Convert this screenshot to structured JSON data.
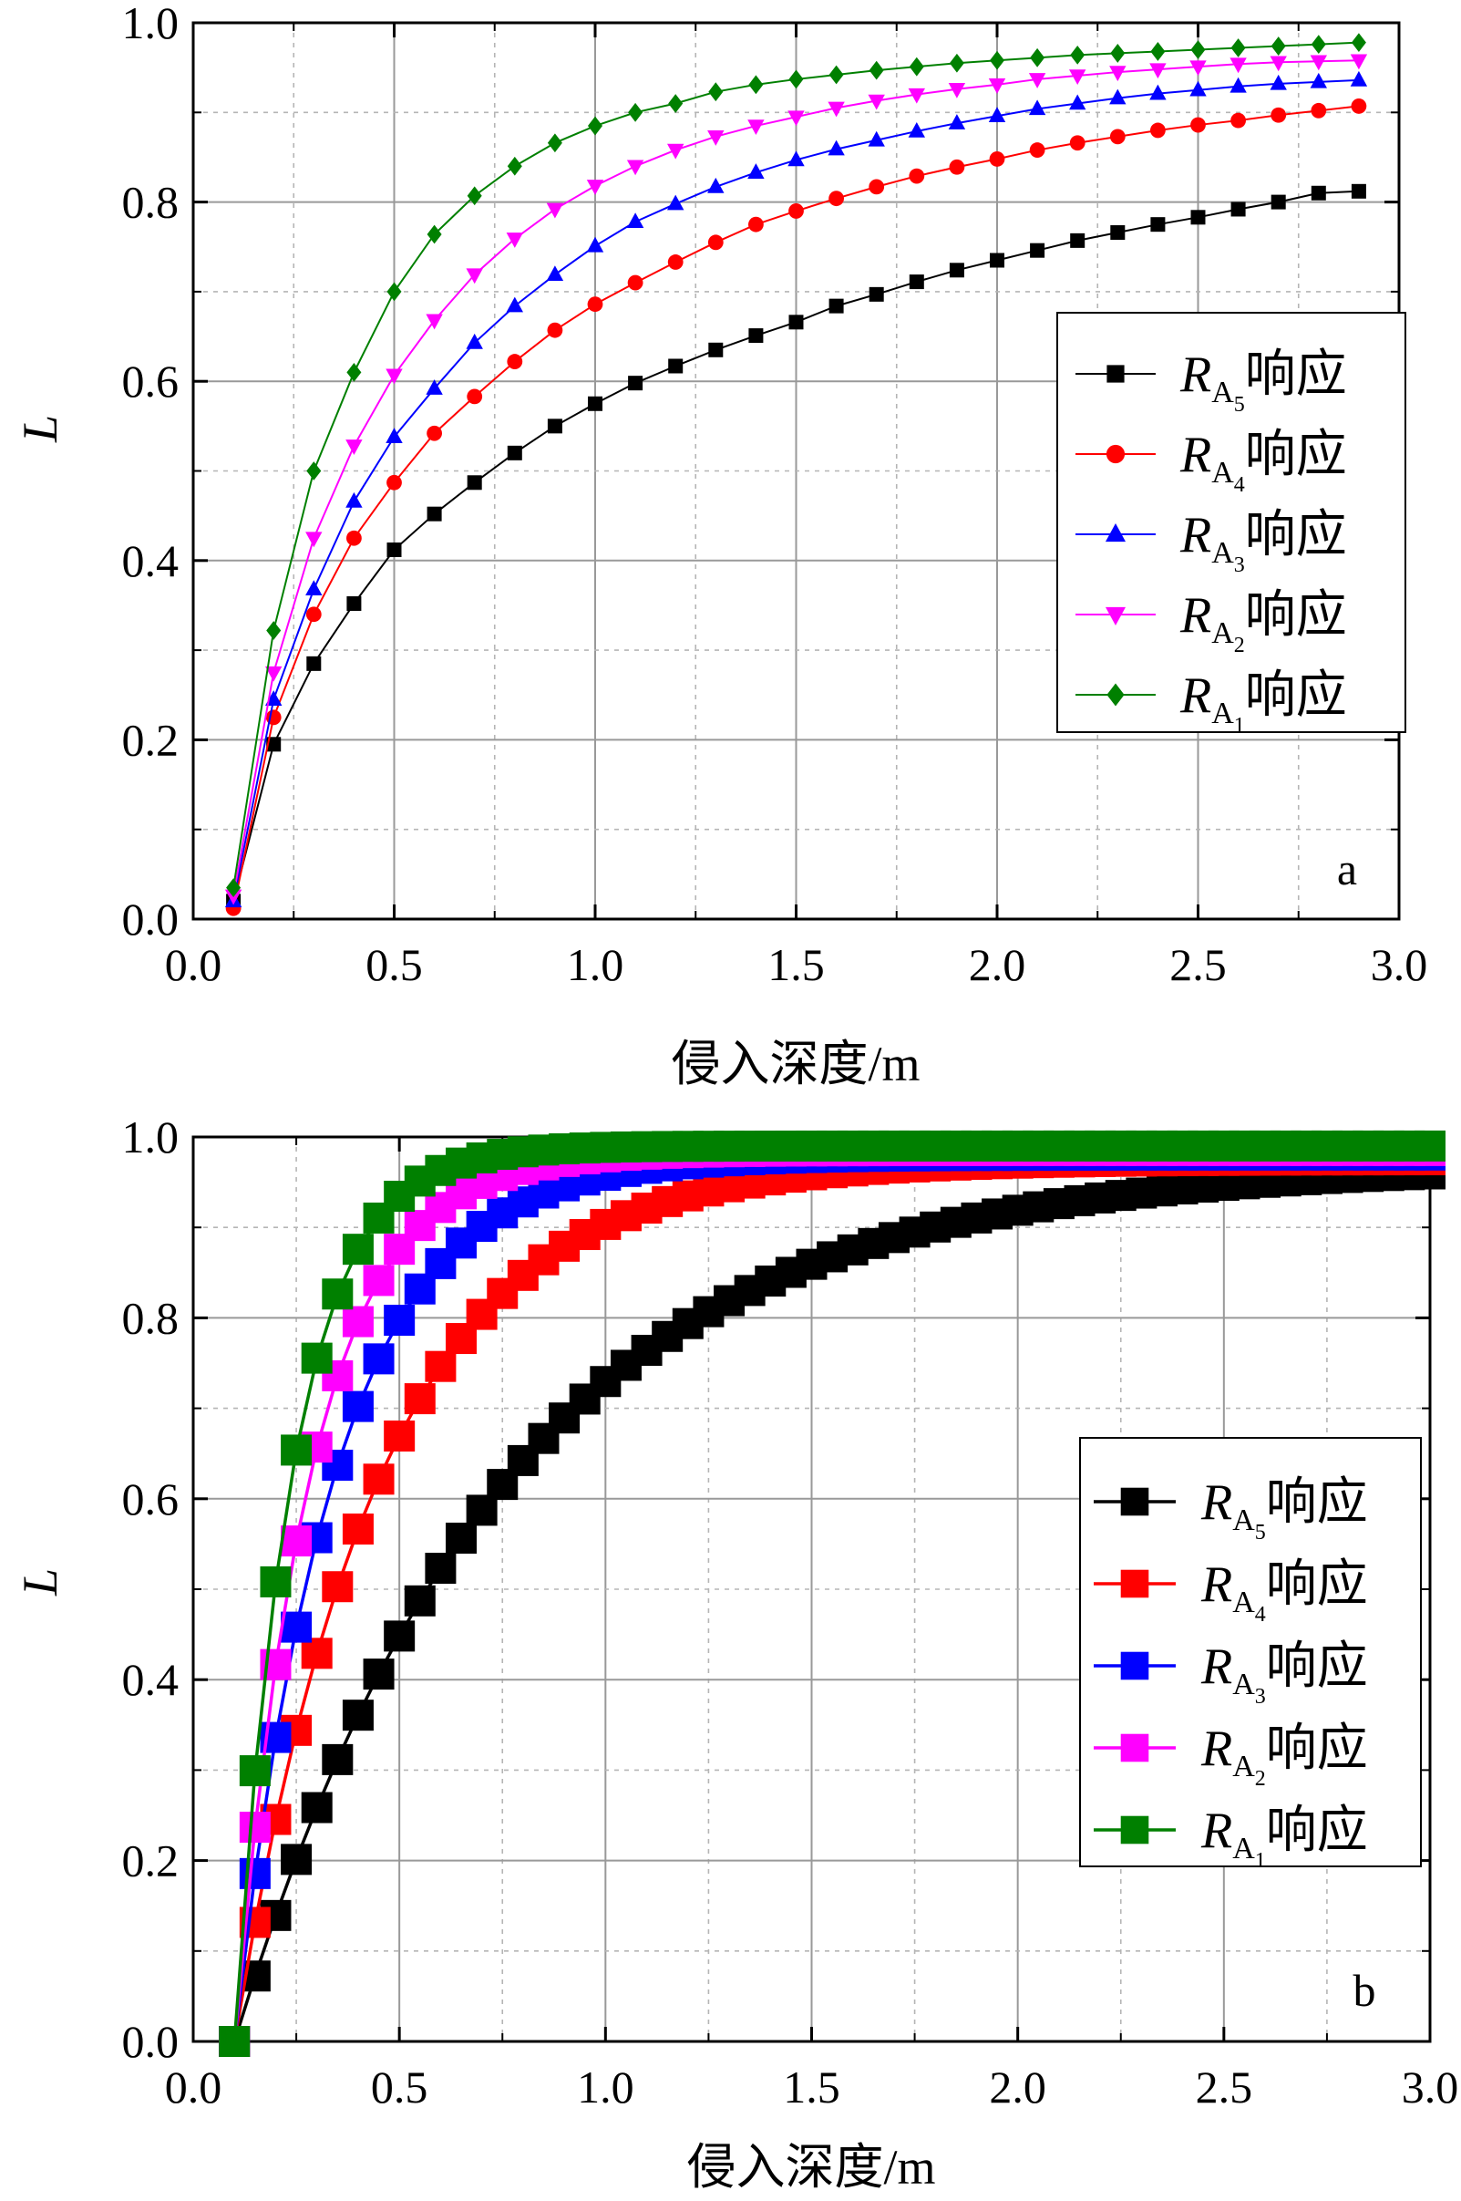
{
  "figure_title": "",
  "chart_data": [
    {
      "type": "line",
      "panel": "a",
      "title": "",
      "xlabel": "侵入深度/m",
      "ylabel": "L",
      "xlim": [
        0.0,
        3.0
      ],
      "ylim": [
        0.0,
        1.0
      ],
      "xticks": [
        0.0,
        0.5,
        1.0,
        1.5,
        2.0,
        2.5,
        3.0
      ],
      "xtick_labels": [
        "0.0",
        "0.5",
        "1.0",
        "1.5",
        "2.0",
        "2.5",
        "3.0"
      ],
      "yticks": [
        0.0,
        0.2,
        0.4,
        0.6,
        0.8,
        1.0
      ],
      "ytick_labels": [
        "0.0",
        "0.2",
        "0.4",
        "0.6",
        "0.8",
        "1.0"
      ],
      "grid": true,
      "legend_position": "center-right",
      "x": [
        0.1,
        0.2,
        0.3,
        0.4,
        0.5,
        0.6,
        0.7,
        0.8,
        0.9,
        1.0,
        1.1,
        1.2,
        1.3,
        1.4,
        1.5,
        1.6,
        1.7,
        1.8,
        1.9,
        2.0,
        2.1,
        2.2,
        2.3,
        2.4,
        2.5,
        2.6,
        2.7,
        2.8,
        2.9
      ],
      "series": [
        {
          "name": "R",
          "sub": "A",
          "subsub": "5",
          "suffix": "响应",
          "color": "#000000",
          "marker": "square",
          "values": [
            0.02,
            0.195,
            0.285,
            0.352,
            0.412,
            0.452,
            0.487,
            0.52,
            0.55,
            0.575,
            0.598,
            0.617,
            0.635,
            0.651,
            0.666,
            0.684,
            0.697,
            0.711,
            0.724,
            0.735,
            0.746,
            0.757,
            0.766,
            0.775,
            0.783,
            0.792,
            0.8,
            0.81,
            0.812
          ]
        },
        {
          "name": "R",
          "sub": "A",
          "subsub": "4",
          "suffix": "响应",
          "color": "#ff0000",
          "marker": "circle",
          "values": [
            0.012,
            0.225,
            0.34,
            0.425,
            0.487,
            0.542,
            0.583,
            0.622,
            0.657,
            0.686,
            0.71,
            0.733,
            0.755,
            0.775,
            0.79,
            0.804,
            0.817,
            0.829,
            0.839,
            0.848,
            0.858,
            0.866,
            0.873,
            0.88,
            0.886,
            0.891,
            0.897,
            0.902,
            0.907
          ]
        },
        {
          "name": "R",
          "sub": "A",
          "subsub": "3",
          "suffix": "响应",
          "color": "#0000ff",
          "marker": "triangle-up",
          "values": [
            0.02,
            0.245,
            0.368,
            0.466,
            0.538,
            0.592,
            0.643,
            0.684,
            0.719,
            0.751,
            0.778,
            0.798,
            0.817,
            0.833,
            0.847,
            0.859,
            0.869,
            0.879,
            0.888,
            0.896,
            0.904,
            0.91,
            0.916,
            0.921,
            0.925,
            0.929,
            0.932,
            0.934,
            0.936
          ]
        },
        {
          "name": "R",
          "sub": "A",
          "subsub": "2",
          "suffix": "响应",
          "color": "#ff00ff",
          "marker": "triangle-down",
          "values": [
            0.026,
            0.275,
            0.425,
            0.528,
            0.607,
            0.668,
            0.719,
            0.759,
            0.792,
            0.818,
            0.84,
            0.858,
            0.873,
            0.885,
            0.895,
            0.905,
            0.913,
            0.92,
            0.926,
            0.931,
            0.937,
            0.941,
            0.945,
            0.948,
            0.951,
            0.954,
            0.956,
            0.957,
            0.958
          ]
        },
        {
          "name": "R",
          "sub": "A",
          "subsub": "1",
          "suffix": "响应",
          "color": "#008000",
          "marker": "diamond",
          "values": [
            0.035,
            0.322,
            0.5,
            0.61,
            0.7,
            0.764,
            0.807,
            0.84,
            0.866,
            0.885,
            0.9,
            0.91,
            0.923,
            0.931,
            0.937,
            0.942,
            0.947,
            0.951,
            0.955,
            0.958,
            0.961,
            0.964,
            0.966,
            0.968,
            0.97,
            0.972,
            0.974,
            0.976,
            0.978
          ]
        }
      ]
    },
    {
      "type": "line",
      "panel": "b",
      "title": "",
      "xlabel": "侵入深度/m",
      "ylabel": "L",
      "xlim": [
        0.0,
        3.0
      ],
      "ylim": [
        0.0,
        1.0
      ],
      "xticks": [
        0.0,
        0.5,
        1.0,
        1.5,
        2.0,
        2.5,
        3.0
      ],
      "xtick_labels": [
        "0.0",
        "0.5",
        "1.0",
        "1.5",
        "2.0",
        "2.5",
        "3.0"
      ],
      "yticks": [
        0.0,
        0.2,
        0.4,
        0.6,
        0.8,
        1.0
      ],
      "ytick_labels": [
        "0.0",
        "0.2",
        "0.4",
        "0.6",
        "0.8",
        "1.0"
      ],
      "grid": true,
      "legend_position": "center-right",
      "x_start": 0.1,
      "x_step": 0.05,
      "series": [
        {
          "name": "R",
          "sub": "A",
          "subsub": "5",
          "suffix": "响应",
          "color": "#000000",
          "marker": "square",
          "rate": 1.55,
          "limit": 0.97
        },
        {
          "name": "R",
          "sub": "A",
          "subsub": "4",
          "suffix": "响应",
          "color": "#ff0000",
          "marker": "square",
          "rate": 2.9,
          "limit": 0.975
        },
        {
          "name": "R",
          "sub": "A",
          "subsub": "3",
          "suffix": "响应",
          "color": "#0000ff",
          "marker": "square",
          "rate": 4.2,
          "limit": 0.98
        },
        {
          "name": "R",
          "sub": "A",
          "subsub": "2",
          "suffix": "响应",
          "color": "#ff00ff",
          "marker": "square",
          "rate": 5.5,
          "limit": 0.985
        },
        {
          "name": "R",
          "sub": "A",
          "subsub": "1",
          "suffix": "响应",
          "color": "#008000",
          "marker": "square",
          "rate": 7.2,
          "limit": 0.99
        }
      ]
    }
  ]
}
